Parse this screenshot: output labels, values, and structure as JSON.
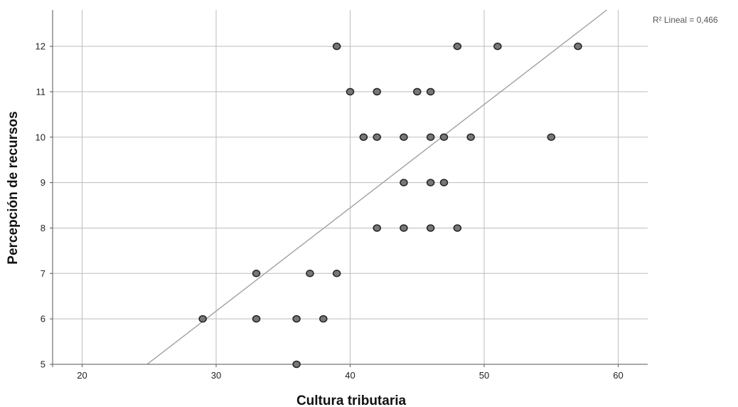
{
  "chart_data": {
    "type": "scatter",
    "title": "",
    "xlabel": "Cultura tributaria",
    "ylabel": "Percepción de recursos",
    "xlim": [
      17.8,
      62.2
    ],
    "ylim": [
      5,
      12.8
    ],
    "x_ticks": [
      20,
      30,
      40,
      50,
      60
    ],
    "y_ticks": [
      5,
      6,
      7,
      8,
      9,
      10,
      11,
      12
    ],
    "grid": true,
    "annotation": "R² Lineal = 0,466",
    "fit_line": {
      "x": [
        24.85,
        59.15
      ],
      "y": [
        5,
        12.8
      ]
    },
    "series": [
      {
        "points": [
          {
            "x": 39,
            "y": 12
          },
          {
            "x": 48,
            "y": 12
          },
          {
            "x": 51,
            "y": 12
          },
          {
            "x": 57,
            "y": 12
          },
          {
            "x": 40,
            "y": 11
          },
          {
            "x": 42,
            "y": 11
          },
          {
            "x": 45,
            "y": 11
          },
          {
            "x": 46,
            "y": 11
          },
          {
            "x": 41,
            "y": 10
          },
          {
            "x": 42,
            "y": 10
          },
          {
            "x": 44,
            "y": 10
          },
          {
            "x": 46,
            "y": 10
          },
          {
            "x": 47,
            "y": 10
          },
          {
            "x": 49,
            "y": 10
          },
          {
            "x": 55,
            "y": 10
          },
          {
            "x": 44,
            "y": 9
          },
          {
            "x": 46,
            "y": 9
          },
          {
            "x": 47,
            "y": 9
          },
          {
            "x": 42,
            "y": 8
          },
          {
            "x": 44,
            "y": 8
          },
          {
            "x": 46,
            "y": 8
          },
          {
            "x": 48,
            "y": 8
          },
          {
            "x": 33,
            "y": 7
          },
          {
            "x": 37,
            "y": 7
          },
          {
            "x": 39,
            "y": 7
          },
          {
            "x": 29,
            "y": 6
          },
          {
            "x": 33,
            "y": 6
          },
          {
            "x": 36,
            "y": 6
          },
          {
            "x": 38,
            "y": 6
          },
          {
            "x": 36,
            "y": 5
          }
        ]
      }
    ],
    "colors": {
      "marker_fill": "#777777",
      "marker_stroke": "#222222",
      "grid": "#bdbdbd",
      "fit_line": "#a0a0a0",
      "axis": "#555555"
    }
  }
}
